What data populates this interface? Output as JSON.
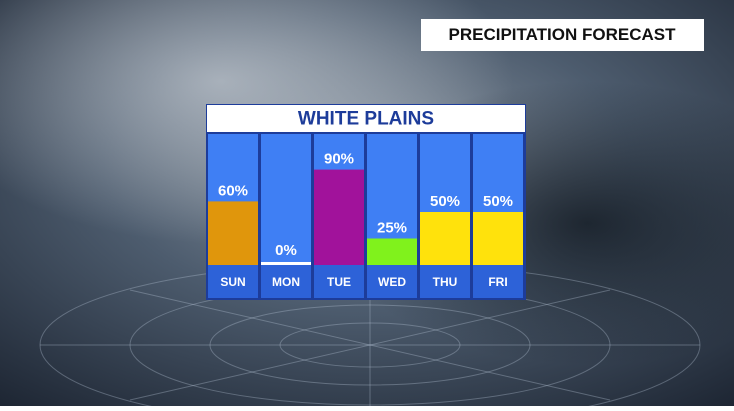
{
  "chart_data": {
    "type": "bar",
    "title": "PRECIPITATION FORECAST",
    "subtitle": "WHITE PLAINS",
    "categories": [
      "SUN",
      "MON",
      "TUE",
      "WED",
      "THU",
      "FRI"
    ],
    "values": [
      60,
      0,
      90,
      25,
      50,
      50
    ],
    "value_labels": [
      "60%",
      "0%",
      "90%",
      "25%",
      "50%",
      "50%"
    ],
    "colors": [
      "#e0960c",
      "#ffffff",
      "#a1129b",
      "#80f21c",
      "#ffe20c",
      "#ffe20c"
    ]
  }
}
